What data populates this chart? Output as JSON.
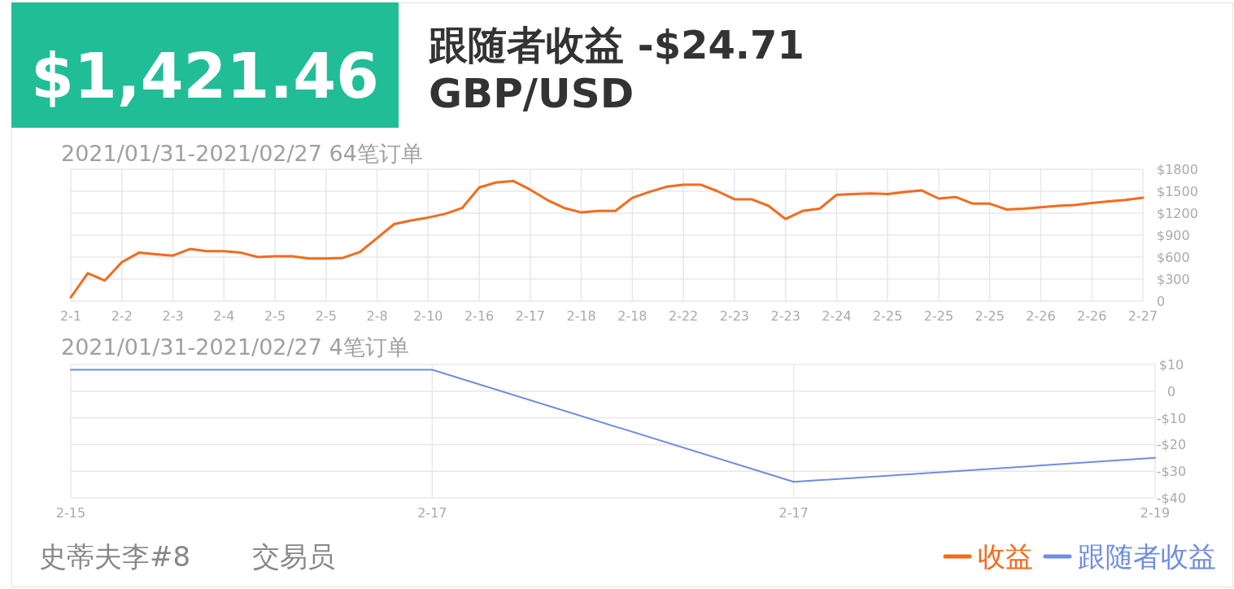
{
  "chart_data": [
    {
      "type": "line",
      "title": "GBP/USD",
      "subtitle": "2021/01/31-2021/02/27 64笔订单",
      "annotations": [
        "$1,421.46",
        "跟随者收益 -$24.71",
        "史蒂夫李#8",
        "交易员"
      ],
      "categories": [
        "2-1",
        null,
        null,
        "2-2",
        null,
        null,
        "2-3",
        null,
        null,
        "2-4",
        null,
        null,
        "2-5",
        null,
        null,
        "2-5",
        null,
        null,
        "2-8",
        null,
        null,
        "2-10",
        null,
        null,
        "2-16",
        null,
        null,
        "2-17",
        null,
        null,
        "2-18",
        null,
        null,
        "2-18",
        null,
        null,
        "2-22",
        null,
        null,
        "2-23",
        null,
        null,
        "2-23",
        null,
        null,
        "2-24",
        null,
        null,
        "2-25",
        null,
        null,
        "2-25",
        null,
        null,
        "2-25",
        null,
        null,
        "2-26",
        null,
        null,
        "2-26",
        null,
        null,
        "2-27"
      ],
      "series": [
        {
          "name": "收益",
          "color": "#f26b1d",
          "values": [
            50,
            380,
            280,
            530,
            660,
            640,
            620,
            710,
            680,
            680,
            660,
            600,
            610,
            610,
            580,
            580,
            590,
            670,
            860,
            1050,
            1100,
            1140,
            1190,
            1270,
            1550,
            1620,
            1640,
            1520,
            1380,
            1270,
            1210,
            1230,
            1230,
            1410,
            1490,
            1560,
            1590,
            1590,
            1500,
            1390,
            1390,
            1300,
            1120,
            1230,
            1260,
            1450,
            1460,
            1470,
            1460,
            1490,
            1510,
            1400,
            1420,
            1330,
            1330,
            1250,
            1260,
            1280,
            1300,
            1310,
            1340,
            1360,
            1380,
            1410
          ]
        }
      ],
      "ylim": [
        0,
        1800
      ],
      "yticks": [
        {
          "value": 0,
          "label": "0"
        },
        {
          "value": 300,
          "label": "$300"
        },
        {
          "value": 600,
          "label": "$600"
        },
        {
          "value": 900,
          "label": "$900"
        },
        {
          "value": 1200,
          "label": "$1200"
        },
        {
          "value": 1500,
          "label": "$1500"
        },
        {
          "value": 1800,
          "label": "$1800"
        }
      ],
      "grid": true,
      "legend": "bottom right"
    },
    {
      "type": "line",
      "subtitle": "2021/01/31-2021/02/27 4笔订单",
      "categories": [
        "2-15",
        "2-17",
        "2-17",
        "2-19"
      ],
      "series": [
        {
          "name": "跟随者收益",
          "color": "#6f8de0",
          "values": [
            8,
            8,
            -34,
            -25
          ]
        }
      ],
      "ylim": [
        -40,
        10
      ],
      "yticks": [
        {
          "value": -40,
          "label": "-$40"
        },
        {
          "value": -30,
          "label": "-$30"
        },
        {
          "value": -20,
          "label": "-$20"
        },
        {
          "value": -10,
          "label": "-$10"
        },
        {
          "value": 0,
          "label": "0"
        },
        {
          "value": 10,
          "label": "$10"
        }
      ],
      "grid": true,
      "legend": "bottom right"
    }
  ]
}
